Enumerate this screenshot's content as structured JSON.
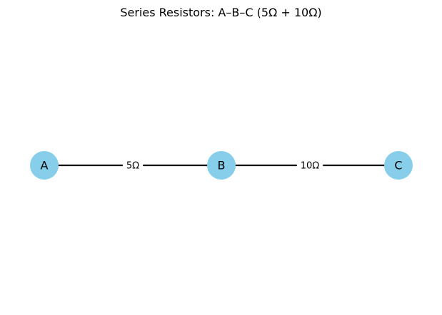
{
  "title": "Series Resistors: A–B–C (5Ω + 10Ω)",
  "colors": {
    "node_fill": "#87ceeb",
    "edge": "#000000",
    "label_bg": "#ffffff"
  },
  "nodes": [
    {
      "id": "A",
      "label": "A"
    },
    {
      "id": "B",
      "label": "B"
    },
    {
      "id": "C",
      "label": "C"
    }
  ],
  "edges": [
    {
      "from": "A",
      "to": "B",
      "label": "5Ω"
    },
    {
      "from": "B",
      "to": "C",
      "label": "10Ω"
    }
  ]
}
